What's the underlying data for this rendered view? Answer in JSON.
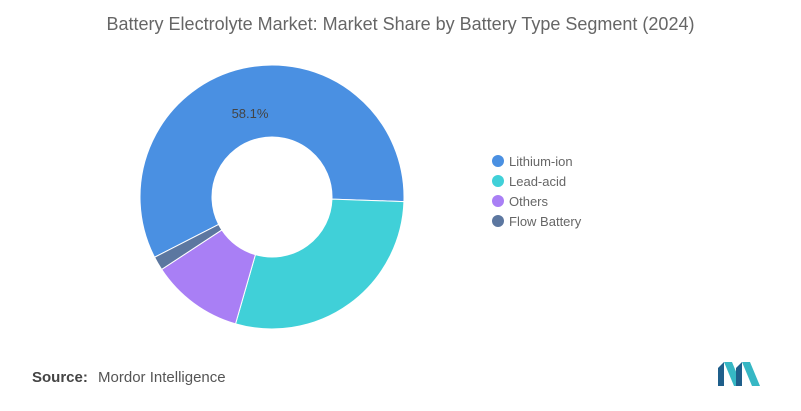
{
  "chart_data": {
    "type": "pie",
    "title": "Battery Electrolyte Market: Market Share by Battery Type Segment (2024)",
    "categories": [
      "Lithium-ion",
      "Lead-acid",
      "Others",
      "Flow Battery"
    ],
    "values": [
      58.1,
      28.9,
      11.3,
      1.7
    ],
    "unit": "%",
    "data_labels": [
      {
        "category": "Lithium-ion",
        "text": "58.1%"
      }
    ],
    "colors": [
      "#4a90e2",
      "#40d0d8",
      "#a97ff5",
      "#5c77a0"
    ],
    "donut": true,
    "legend_position": "right"
  },
  "source": {
    "label": "Source:",
    "value": "Mordor Intelligence"
  },
  "logo": {
    "icon": "mordor-intelligence-logo-icon",
    "colors": [
      "#1f5f8b",
      "#36b7c4"
    ]
  }
}
